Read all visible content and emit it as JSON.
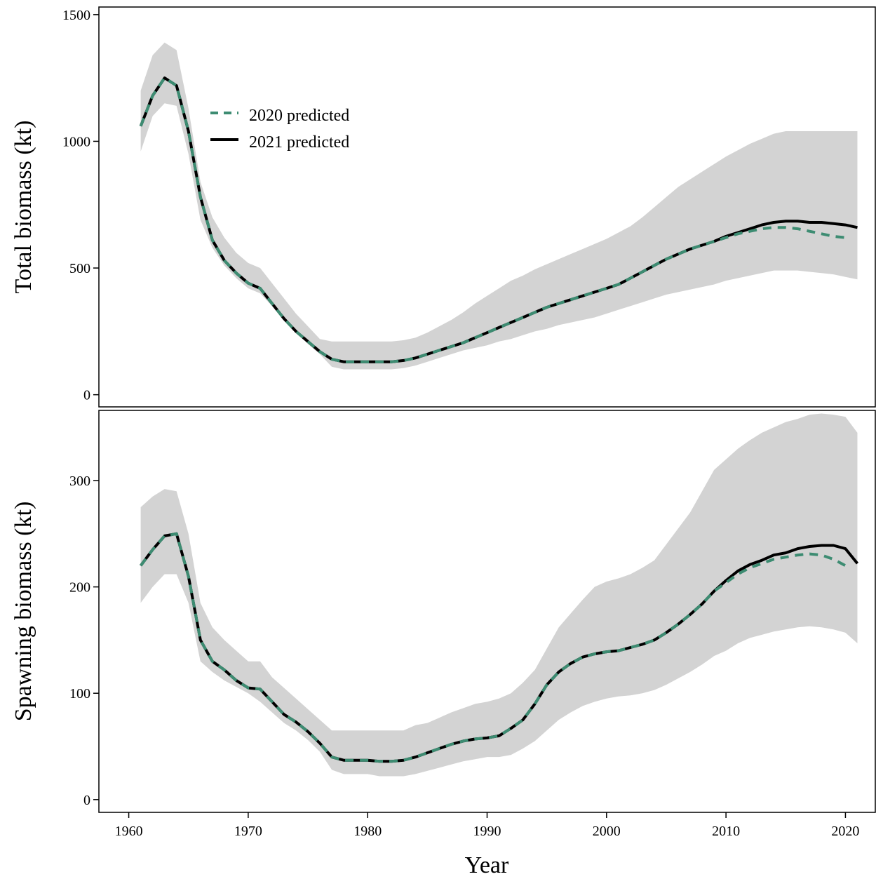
{
  "chart_data": {
    "type": "line",
    "xlabel": "Year",
    "xlim": [
      1957.5,
      2022.5
    ],
    "xticks": [
      1960,
      1970,
      1980,
      1990,
      2000,
      2010,
      2020
    ],
    "legend": {
      "placement": "top-left",
      "entries": [
        "2020 predicted",
        "2021 predicted"
      ]
    },
    "colors": {
      "2020 predicted": "#3d8c72",
      "2021 predicted": "#000000",
      "band": "#d3d3d3"
    },
    "panels": [
      {
        "ylabel": "Total biomass (kt)",
        "ylim": [
          -48,
          1530
        ],
        "yticks": [
          0,
          500,
          1000,
          1500
        ],
        "x": [
          1961,
          1962,
          1963,
          1964,
          1965,
          1966,
          1967,
          1968,
          1969,
          1970,
          1971,
          1972,
          1973,
          1974,
          1975,
          1976,
          1977,
          1978,
          1979,
          1980,
          1981,
          1982,
          1983,
          1984,
          1985,
          1986,
          1987,
          1988,
          1989,
          1990,
          1991,
          1992,
          1993,
          1994,
          1995,
          1996,
          1997,
          1998,
          1999,
          2000,
          2001,
          2002,
          2003,
          2004,
          2005,
          2006,
          2007,
          2008,
          2009,
          2010,
          2011,
          2012,
          2013,
          2014,
          2015,
          2016,
          2017,
          2018,
          2019,
          2020,
          2021
        ],
        "band_upper": [
          1200,
          1340,
          1390,
          1360,
          1130,
          840,
          700,
          620,
          560,
          520,
          500,
          440,
          380,
          320,
          270,
          220,
          210,
          210,
          210,
          210,
          210,
          210,
          215,
          225,
          245,
          270,
          295,
          325,
          360,
          390,
          420,
          450,
          470,
          495,
          515,
          535,
          555,
          575,
          595,
          615,
          640,
          665,
          700,
          740,
          780,
          820,
          850,
          880,
          910,
          940,
          965,
          990,
          1010,
          1030,
          1040,
          1040,
          1040,
          1040,
          1040,
          1040,
          1040
        ],
        "band_lower": [
          960,
          1100,
          1150,
          1140,
          950,
          690,
          580,
          510,
          460,
          420,
          400,
          350,
          300,
          250,
          200,
          160,
          110,
          100,
          100,
          100,
          100,
          100,
          105,
          115,
          130,
          145,
          160,
          175,
          185,
          195,
          210,
          220,
          235,
          250,
          260,
          275,
          285,
          295,
          305,
          320,
          335,
          350,
          365,
          380,
          395,
          405,
          415,
          425,
          435,
          450,
          460,
          470,
          480,
          490,
          490,
          490,
          485,
          480,
          475,
          465,
          455
        ],
        "series": [
          {
            "name": "2020 predicted",
            "values": [
              1060,
              1180,
              1250,
              1220,
              1040,
              780,
              610,
              530,
              480,
              440,
              420,
              360,
              300,
              250,
              210,
              170,
              140,
              130,
              130,
              130,
              130,
              130,
              135,
              145,
              160,
              175,
              190,
              205,
              225,
              245,
              265,
              285,
              305,
              325,
              345,
              360,
              375,
              390,
              405,
              420,
              435,
              460,
              485,
              510,
              535,
              555,
              575,
              590,
              605,
              620,
              635,
              645,
              655,
              660,
              660,
              655,
              645,
              635,
              625,
              620,
              null
            ],
            "dashed": true
          },
          {
            "name": "2021 predicted",
            "values": [
              1060,
              1180,
              1250,
              1220,
              1040,
              780,
              610,
              530,
              480,
              440,
              420,
              360,
              300,
              250,
              210,
              170,
              140,
              130,
              130,
              130,
              130,
              130,
              135,
              145,
              160,
              175,
              190,
              205,
              225,
              245,
              265,
              285,
              305,
              325,
              345,
              360,
              375,
              390,
              405,
              420,
              435,
              460,
              485,
              510,
              535,
              555,
              575,
              590,
              605,
              625,
              640,
              655,
              670,
              680,
              685,
              685,
              680,
              680,
              675,
              670,
              660
            ],
            "dashed": false
          }
        ]
      },
      {
        "ylabel": "Spawning biomass (kt)",
        "ylim": [
          -12,
          366
        ],
        "yticks": [
          0,
          100,
          200,
          300
        ],
        "x": [
          1961,
          1962,
          1963,
          1964,
          1965,
          1966,
          1967,
          1968,
          1969,
          1970,
          1971,
          1972,
          1973,
          1974,
          1975,
          1976,
          1977,
          1978,
          1979,
          1980,
          1981,
          1982,
          1983,
          1984,
          1985,
          1986,
          1987,
          1988,
          1989,
          1990,
          1991,
          1992,
          1993,
          1994,
          1995,
          1996,
          1997,
          1998,
          1999,
          2000,
          2001,
          2002,
          2003,
          2004,
          2005,
          2006,
          2007,
          2008,
          2009,
          2010,
          2011,
          2012,
          2013,
          2014,
          2015,
          2016,
          2017,
          2018,
          2019,
          2020,
          2021
        ],
        "band_upper": [
          275,
          285,
          292,
          290,
          250,
          185,
          162,
          150,
          140,
          130,
          130,
          115,
          105,
          95,
          85,
          75,
          65,
          65,
          65,
          65,
          65,
          65,
          65,
          70,
          72,
          77,
          82,
          86,
          90,
          92,
          95,
          100,
          110,
          122,
          142,
          162,
          175,
          188,
          200,
          205,
          208,
          212,
          218,
          225,
          240,
          255,
          270,
          290,
          310,
          320,
          330,
          338,
          345,
          350,
          355,
          358,
          362,
          363,
          362,
          360,
          345
        ],
        "band_lower": [
          185,
          200,
          212,
          212,
          185,
          130,
          120,
          112,
          106,
          100,
          92,
          82,
          72,
          65,
          56,
          45,
          28,
          24,
          24,
          24,
          22,
          22,
          22,
          24,
          27,
          30,
          33,
          36,
          38,
          40,
          40,
          42,
          48,
          55,
          65,
          75,
          82,
          88,
          92,
          95,
          97,
          98,
          100,
          103,
          108,
          114,
          120,
          127,
          135,
          140,
          147,
          152,
          155,
          158,
          160,
          162,
          163,
          162,
          160,
          157,
          147
        ],
        "series": [
          {
            "name": "2020 predicted",
            "values": [
              220,
              235,
              248,
              250,
              210,
              150,
              130,
              122,
              112,
              105,
              104,
              92,
              80,
              73,
              64,
              53,
              40,
              37,
              37,
              37,
              36,
              36,
              37,
              40,
              44,
              48,
              52,
              55,
              57,
              58,
              60,
              67,
              75,
              90,
              108,
              120,
              128,
              134,
              137,
              139,
              140,
              143,
              146,
              150,
              157,
              165,
              174,
              184,
              196,
              204,
              212,
              218,
              222,
              226,
              228,
              230,
              231,
              230,
              226,
              220,
              null
            ],
            "dashed": true
          },
          {
            "name": "2021 predicted",
            "values": [
              220,
              235,
              248,
              250,
              210,
              150,
              130,
              122,
              112,
              105,
              104,
              92,
              80,
              73,
              64,
              53,
              40,
              37,
              37,
              37,
              36,
              36,
              37,
              40,
              44,
              48,
              52,
              55,
              57,
              58,
              60,
              67,
              75,
              90,
              108,
              120,
              128,
              134,
              137,
              139,
              140,
              143,
              146,
              150,
              157,
              165,
              174,
              184,
              196,
              206,
              215,
              221,
              225,
              230,
              232,
              236,
              238,
              239,
              239,
              236,
              222
            ],
            "dashed": false
          }
        ]
      }
    ]
  }
}
